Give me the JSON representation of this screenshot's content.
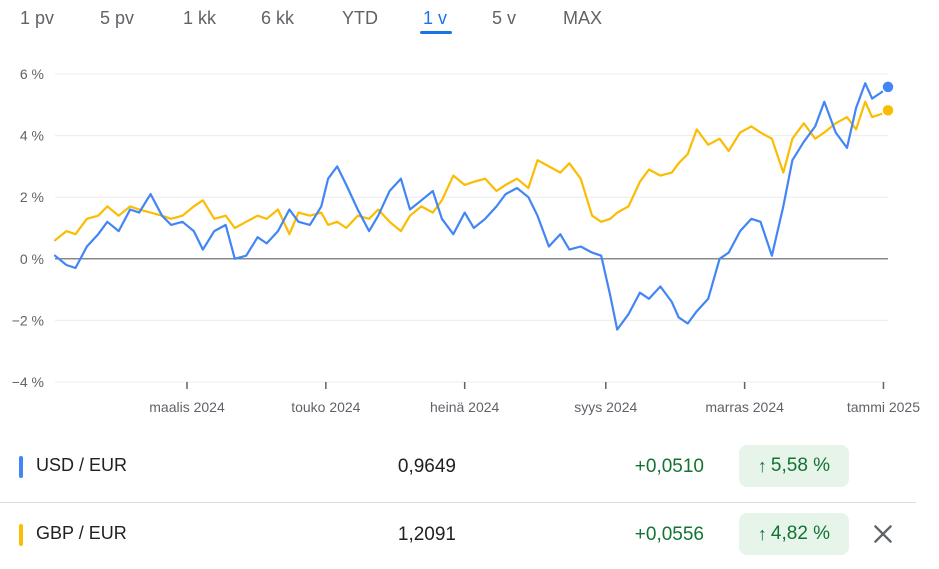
{
  "tabs": [
    {
      "label": "1 pv",
      "active": false
    },
    {
      "label": "5 pv",
      "active": false
    },
    {
      "label": "1 kk",
      "active": false
    },
    {
      "label": "6 kk",
      "active": false
    },
    {
      "label": "YTD",
      "active": false
    },
    {
      "label": "1 v",
      "active": true
    },
    {
      "label": "5 v",
      "active": false
    },
    {
      "label": "MAX",
      "active": false
    }
  ],
  "rows": [
    {
      "pair": "USD / EUR",
      "value": "0,9649",
      "change": "+0,0510",
      "percent": "5,58 %",
      "color": "#4285f4"
    },
    {
      "pair": "GBP / EUR",
      "value": "1,2091",
      "change": "+0,0556",
      "percent": "4,82 %",
      "color": "#fbbc04"
    }
  ],
  "icons": {
    "percent_arrow": "arrow-up-icon",
    "close": "close-icon"
  },
  "chart_data": {
    "type": "line",
    "title": "",
    "xlabel": "",
    "ylabel": "",
    "x_ticks": [
      "maalis 2024",
      "touko 2024",
      "heinä 2024",
      "syys 2024",
      "marras 2024",
      "tammi 2025"
    ],
    "x_tick_dates": [
      "2024-03-01",
      "2024-05-01",
      "2024-07-01",
      "2024-09-01",
      "2024-11-01",
      "2025-01-01"
    ],
    "x_range": [
      "2024-01-03",
      "2025-01-03"
    ],
    "y_ticks": [
      "6 %",
      "4 %",
      "2 %",
      "0 %",
      "−2 %",
      "−4 %"
    ],
    "ylim": [
      -4,
      6
    ],
    "grid": true,
    "baseline": 0,
    "series": [
      {
        "name": "USD / EUR",
        "color": "#4285f4",
        "points": [
          [
            "2024-01-03",
            0.1
          ],
          [
            "2024-01-08",
            -0.2
          ],
          [
            "2024-01-12",
            -0.3
          ],
          [
            "2024-01-17",
            0.4
          ],
          [
            "2024-01-22",
            0.8
          ],
          [
            "2024-01-26",
            1.2
          ],
          [
            "2024-01-31",
            0.9
          ],
          [
            "2024-02-05",
            1.6
          ],
          [
            "2024-02-09",
            1.5
          ],
          [
            "2024-02-14",
            2.1
          ],
          [
            "2024-02-19",
            1.4
          ],
          [
            "2024-02-23",
            1.1
          ],
          [
            "2024-02-28",
            1.2
          ],
          [
            "2024-03-04",
            0.9
          ],
          [
            "2024-03-08",
            0.3
          ],
          [
            "2024-03-13",
            0.9
          ],
          [
            "2024-03-18",
            1.1
          ],
          [
            "2024-03-22",
            0.0
          ],
          [
            "2024-03-27",
            0.1
          ],
          [
            "2024-04-01",
            0.7
          ],
          [
            "2024-04-05",
            0.5
          ],
          [
            "2024-04-10",
            0.9
          ],
          [
            "2024-04-15",
            1.6
          ],
          [
            "2024-04-19",
            1.2
          ],
          [
            "2024-04-24",
            1.1
          ],
          [
            "2024-04-29",
            1.7
          ],
          [
            "2024-05-02",
            2.6
          ],
          [
            "2024-05-06",
            3.0
          ],
          [
            "2024-05-10",
            2.4
          ],
          [
            "2024-05-15",
            1.6
          ],
          [
            "2024-05-20",
            0.9
          ],
          [
            "2024-05-24",
            1.4
          ],
          [
            "2024-05-29",
            2.2
          ],
          [
            "2024-06-03",
            2.6
          ],
          [
            "2024-06-07",
            1.6
          ],
          [
            "2024-06-12",
            1.9
          ],
          [
            "2024-06-17",
            2.2
          ],
          [
            "2024-06-21",
            1.3
          ],
          [
            "2024-06-26",
            0.8
          ],
          [
            "2024-07-01",
            1.5
          ],
          [
            "2024-07-05",
            1.0
          ],
          [
            "2024-07-10",
            1.3
          ],
          [
            "2024-07-15",
            1.7
          ],
          [
            "2024-07-19",
            2.1
          ],
          [
            "2024-07-24",
            2.3
          ],
          [
            "2024-07-29",
            2.0
          ],
          [
            "2024-08-02",
            1.4
          ],
          [
            "2024-08-07",
            0.4
          ],
          [
            "2024-08-12",
            0.8
          ],
          [
            "2024-08-16",
            0.3
          ],
          [
            "2024-08-21",
            0.4
          ],
          [
            "2024-08-26",
            0.2
          ],
          [
            "2024-08-30",
            0.1
          ],
          [
            "2024-09-03",
            -1.2
          ],
          [
            "2024-09-06",
            -2.3
          ],
          [
            "2024-09-11",
            -1.8
          ],
          [
            "2024-09-16",
            -1.1
          ],
          [
            "2024-09-20",
            -1.3
          ],
          [
            "2024-09-25",
            -0.9
          ],
          [
            "2024-09-30",
            -1.4
          ],
          [
            "2024-10-03",
            -1.9
          ],
          [
            "2024-10-07",
            -2.1
          ],
          [
            "2024-10-11",
            -1.7
          ],
          [
            "2024-10-16",
            -1.3
          ],
          [
            "2024-10-21",
            0.0
          ],
          [
            "2024-10-25",
            0.2
          ],
          [
            "2024-10-30",
            0.9
          ],
          [
            "2024-11-04",
            1.3
          ],
          [
            "2024-11-08",
            1.2
          ],
          [
            "2024-11-13",
            0.1
          ],
          [
            "2024-11-18",
            1.7
          ],
          [
            "2024-11-22",
            3.2
          ],
          [
            "2024-11-27",
            3.8
          ],
          [
            "2024-12-02",
            4.3
          ],
          [
            "2024-12-06",
            5.1
          ],
          [
            "2024-12-11",
            4.1
          ],
          [
            "2024-12-16",
            3.6
          ],
          [
            "2024-12-20",
            4.9
          ],
          [
            "2024-12-24",
            5.7
          ],
          [
            "2024-12-27",
            5.2
          ],
          [
            "2024-12-31",
            5.4
          ],
          [
            "2025-01-03",
            5.58
          ]
        ]
      },
      {
        "name": "GBP / EUR",
        "color": "#fbbc04",
        "points": [
          [
            "2024-01-03",
            0.6
          ],
          [
            "2024-01-08",
            0.9
          ],
          [
            "2024-01-12",
            0.8
          ],
          [
            "2024-01-17",
            1.3
          ],
          [
            "2024-01-22",
            1.4
          ],
          [
            "2024-01-26",
            1.7
          ],
          [
            "2024-01-31",
            1.4
          ],
          [
            "2024-02-05",
            1.7
          ],
          [
            "2024-02-09",
            1.6
          ],
          [
            "2024-02-14",
            1.5
          ],
          [
            "2024-02-19",
            1.4
          ],
          [
            "2024-02-23",
            1.3
          ],
          [
            "2024-02-28",
            1.4
          ],
          [
            "2024-03-04",
            1.7
          ],
          [
            "2024-03-08",
            1.9
          ],
          [
            "2024-03-13",
            1.3
          ],
          [
            "2024-03-18",
            1.4
          ],
          [
            "2024-03-22",
            1.0
          ],
          [
            "2024-03-27",
            1.2
          ],
          [
            "2024-04-01",
            1.4
          ],
          [
            "2024-04-05",
            1.3
          ],
          [
            "2024-04-10",
            1.6
          ],
          [
            "2024-04-15",
            0.8
          ],
          [
            "2024-04-19",
            1.5
          ],
          [
            "2024-04-24",
            1.4
          ],
          [
            "2024-04-29",
            1.5
          ],
          [
            "2024-05-02",
            1.1
          ],
          [
            "2024-05-06",
            1.2
          ],
          [
            "2024-05-10",
            1.0
          ],
          [
            "2024-05-15",
            1.4
          ],
          [
            "2024-05-20",
            1.3
          ],
          [
            "2024-05-24",
            1.6
          ],
          [
            "2024-05-29",
            1.2
          ],
          [
            "2024-06-03",
            0.9
          ],
          [
            "2024-06-07",
            1.4
          ],
          [
            "2024-06-12",
            1.7
          ],
          [
            "2024-06-17",
            1.5
          ],
          [
            "2024-06-21",
            1.9
          ],
          [
            "2024-06-26",
            2.7
          ],
          [
            "2024-07-01",
            2.4
          ],
          [
            "2024-07-05",
            2.5
          ],
          [
            "2024-07-10",
            2.6
          ],
          [
            "2024-07-15",
            2.2
          ],
          [
            "2024-07-19",
            2.4
          ],
          [
            "2024-07-24",
            2.6
          ],
          [
            "2024-07-29",
            2.3
          ],
          [
            "2024-08-02",
            3.2
          ],
          [
            "2024-08-07",
            3.0
          ],
          [
            "2024-08-12",
            2.8
          ],
          [
            "2024-08-16",
            3.1
          ],
          [
            "2024-08-21",
            2.6
          ],
          [
            "2024-08-26",
            1.4
          ],
          [
            "2024-08-30",
            1.2
          ],
          [
            "2024-09-03",
            1.3
          ],
          [
            "2024-09-06",
            1.5
          ],
          [
            "2024-09-11",
            1.7
          ],
          [
            "2024-09-16",
            2.5
          ],
          [
            "2024-09-20",
            2.9
          ],
          [
            "2024-09-25",
            2.7
          ],
          [
            "2024-09-30",
            2.8
          ],
          [
            "2024-10-03",
            3.1
          ],
          [
            "2024-10-07",
            3.4
          ],
          [
            "2024-10-11",
            4.2
          ],
          [
            "2024-10-16",
            3.7
          ],
          [
            "2024-10-21",
            3.9
          ],
          [
            "2024-10-25",
            3.5
          ],
          [
            "2024-10-30",
            4.1
          ],
          [
            "2024-11-04",
            4.3
          ],
          [
            "2024-11-08",
            4.1
          ],
          [
            "2024-11-13",
            3.9
          ],
          [
            "2024-11-18",
            2.8
          ],
          [
            "2024-11-22",
            3.9
          ],
          [
            "2024-11-27",
            4.4
          ],
          [
            "2024-12-02",
            3.9
          ],
          [
            "2024-12-06",
            4.1
          ],
          [
            "2024-12-11",
            4.4
          ],
          [
            "2024-12-16",
            4.6
          ],
          [
            "2024-12-20",
            4.2
          ],
          [
            "2024-12-24",
            5.1
          ],
          [
            "2024-12-27",
            4.6
          ],
          [
            "2024-12-31",
            4.7
          ],
          [
            "2025-01-03",
            4.82
          ]
        ]
      }
    ]
  }
}
